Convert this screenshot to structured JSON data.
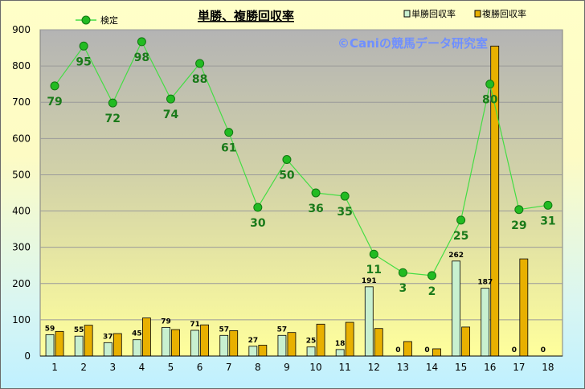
{
  "chart_data": {
    "type": "bar",
    "title": "単勝、複勝回収率",
    "watermark": "©Caniの競馬データ研究室",
    "categories": [
      "1",
      "2",
      "3",
      "4",
      "5",
      "6",
      "7",
      "8",
      "9",
      "10",
      "11",
      "12",
      "13",
      "14",
      "15",
      "16",
      "17",
      "18"
    ],
    "ylim": [
      0,
      900
    ],
    "yticks": [
      0,
      100,
      200,
      300,
      400,
      500,
      600,
      700,
      800,
      900
    ],
    "grid": true,
    "legend_placement": "top",
    "series": [
      {
        "name": "単勝回収率",
        "kind": "bar",
        "color": "#c8f0d0",
        "values": [
          59,
          55,
          37,
          45,
          79,
          71,
          57,
          27,
          57,
          25,
          18,
          191,
          0,
          0,
          262,
          187,
          0,
          0
        ],
        "labels": [
          "59",
          "55",
          "37",
          "45",
          "79",
          "71",
          "57",
          "27",
          "57",
          "25",
          "18",
          "191",
          "0",
          "0",
          "262",
          "187",
          "0",
          "0"
        ]
      },
      {
        "name": "複勝回収率",
        "kind": "bar",
        "color": "#e8b000",
        "values": [
          68,
          85,
          62,
          105,
          73,
          86,
          70,
          30,
          65,
          88,
          93,
          76,
          40,
          20,
          80,
          855,
          268,
          0
        ]
      },
      {
        "name": "検定",
        "kind": "line",
        "color": "#22bb22",
        "values": [
          745,
          855,
          698,
          867,
          709,
          807,
          617,
          410,
          542,
          450,
          441,
          281,
          230,
          222,
          375,
          750,
          404,
          416
        ],
        "labels": [
          "79",
          "95",
          "72",
          "98",
          "74",
          "88",
          "61",
          "30",
          "50",
          "36",
          "35",
          "11",
          "3",
          "2",
          "25",
          "80",
          "29",
          "31"
        ]
      }
    ]
  }
}
